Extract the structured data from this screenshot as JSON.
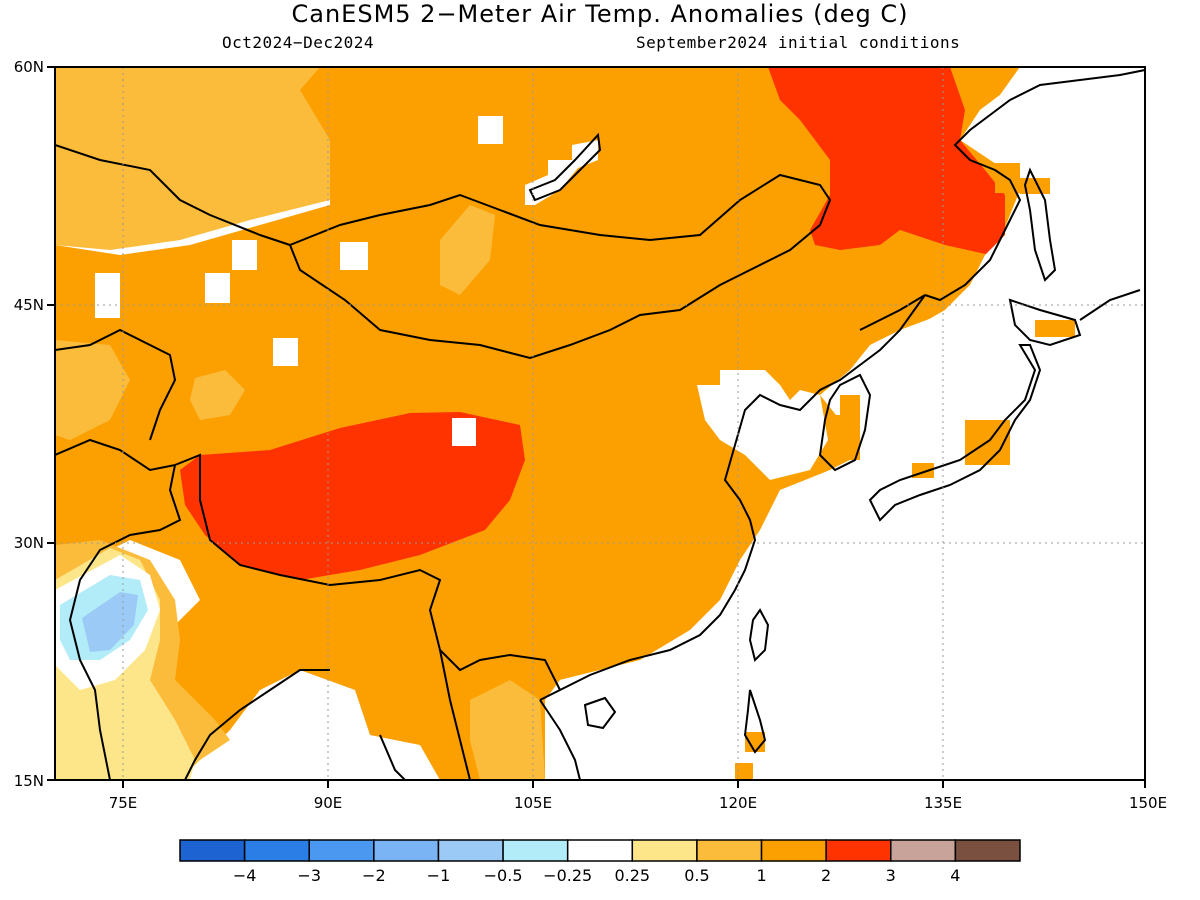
{
  "header": {
    "title": "CanESM5 2−Meter Air Temp. Anomalies (deg C)",
    "period": "Oct2024−Dec2024",
    "init": "September2024 initial conditions"
  },
  "map": {
    "lat_labels": [
      "60N",
      "45N",
      "30N",
      "15N"
    ],
    "lon_labels": [
      "75E",
      "90E",
      "105E",
      "120E",
      "135E",
      "150E"
    ],
    "lon_range": [
      70,
      150
    ],
    "lat_range": [
      15,
      60
    ],
    "regions": [
      {
        "name": "anomaly-1-to-2-large",
        "level": "1 to 2",
        "color": "#fba000"
      },
      {
        "name": "anomaly-0.5-to-1-northwest",
        "level": "0.5 to 1",
        "color": "#fbbc3c"
      },
      {
        "name": "anomaly-2-to-3-tibet",
        "level": "2 to 3",
        "color": "#ff3300"
      },
      {
        "name": "anomaly-2-to-3-northeast",
        "level": "2 to 3",
        "color": "#ff3300"
      },
      {
        "name": "anomaly-negative-india",
        "level": "-0.5 to -1",
        "color": "#a6e4f6"
      }
    ]
  },
  "colorbar": {
    "colors": [
      "#1d64d2",
      "#2a7ee6",
      "#4a98f0",
      "#7ab4f4",
      "#9ccaf6",
      "#b2ecf8",
      "#ffffff",
      "#fde68a",
      "#fbbc3c",
      "#fba000",
      "#ff3300",
      "#c8a39a",
      "#7a5040"
    ],
    "labels": [
      "−4",
      "−3",
      "−2",
      "−1",
      "−0.5",
      "−0.25",
      "0.25",
      "0.5",
      "1",
      "2",
      "3",
      "4"
    ]
  }
}
